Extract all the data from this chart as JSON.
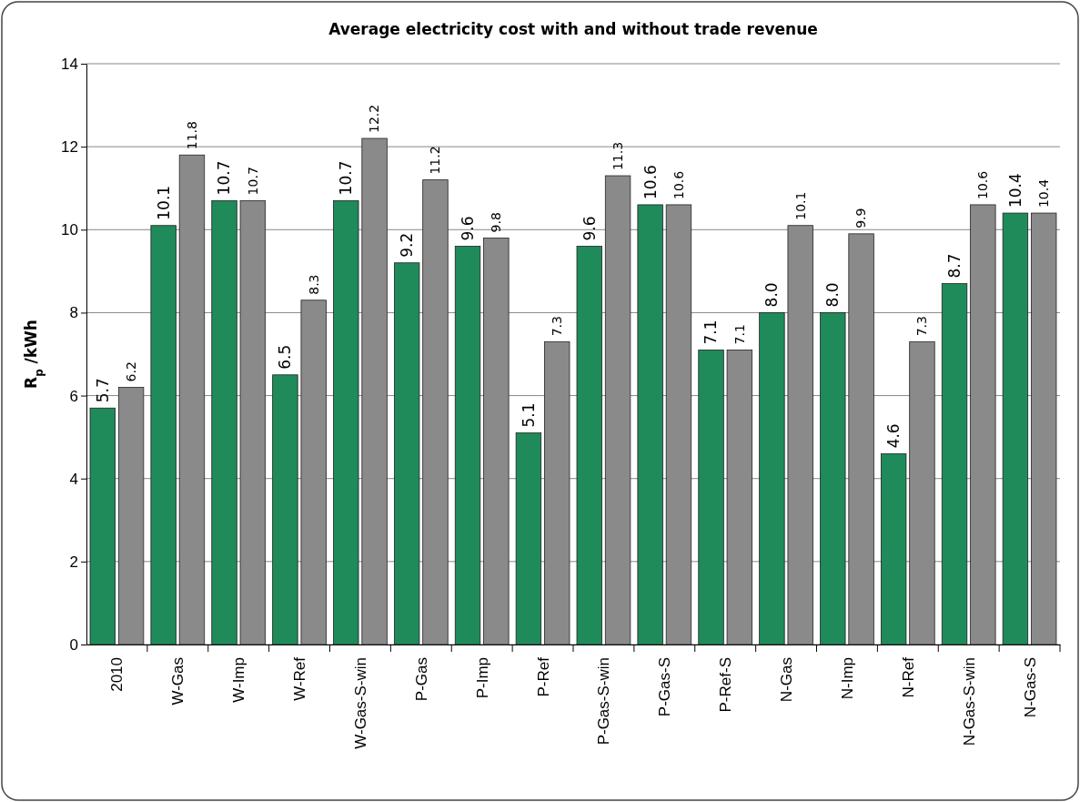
{
  "chart_data": {
    "type": "bar",
    "title": "Average electricity cost with and without trade revenue",
    "ylabel": "R$_{p}$ /kWh",
    "categories": [
      "2010",
      "W-Gas",
      "W-Imp",
      "W-Ref",
      "W-Gas-S-win",
      "P-Gas",
      "P-Imp",
      "P-Ref",
      "P-Gas-S-win",
      "P-Gas-S",
      "P-Ref-S",
      "N-Gas",
      "N-Imp",
      "N-Ref",
      "N-Gas-S-win",
      "N-Gas-S"
    ],
    "series": [
      {
        "color": "#1f8a5a",
        "values": [
          5.7,
          10.1,
          10.7,
          6.5,
          10.7,
          9.2,
          9.6,
          5.1,
          9.6,
          10.6,
          7.1,
          8.0,
          8.0,
          4.6,
          8.7,
          10.4
        ],
        "value_labels": [
          "5.7",
          "10.1",
          "10.7",
          "6.5",
          "10.7",
          "9.2",
          "9.6",
          "5.1",
          "9.6",
          "10.6",
          "7.1",
          "8.0",
          "8.0",
          "4.6",
          "8.7",
          "10.4"
        ]
      },
      {
        "color": "#8a8a8a",
        "values": [
          6.2,
          11.8,
          10.7,
          8.3,
          12.2,
          11.2,
          9.8,
          7.3,
          11.3,
          10.6,
          7.1,
          10.1,
          9.9,
          7.3,
          10.6,
          10.4
        ],
        "value_labels": [
          "6.2",
          "11.8",
          "10.7",
          "8.3",
          "12.2",
          "11.2",
          "9.8",
          "7.3",
          "11.3",
          "10.6",
          "7.1",
          "10.1",
          "9.9",
          "7.3",
          "10.6",
          "10.4"
        ]
      }
    ],
    "ylim": [
      0,
      14
    ],
    "yticks": [
      0,
      2,
      4,
      6,
      8,
      10,
      12,
      14
    ],
    "grid": "y"
  }
}
